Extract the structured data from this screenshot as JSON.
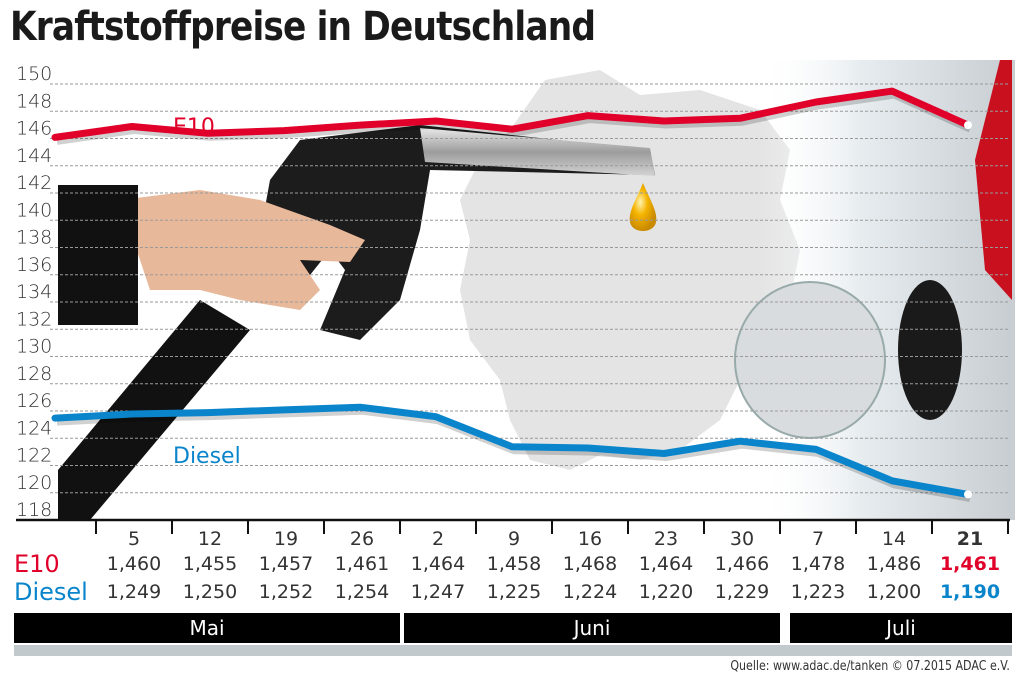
{
  "title": "Kraftstoffpreise in Deutschland",
  "chart_data": {
    "type": "line",
    "title": "Kraftstoffpreise in Deutschland",
    "xlabel": "",
    "ylabel": "",
    "ylim": [
      118,
      150
    ],
    "yticks": [
      150,
      148,
      146,
      144,
      142,
      140,
      138,
      136,
      134,
      132,
      130,
      128,
      126,
      124,
      122,
      120,
      118
    ],
    "grid": true,
    "categories": [
      "5",
      "12",
      "19",
      "26",
      "2",
      "9",
      "16",
      "23",
      "30",
      "7",
      "14",
      "21"
    ],
    "months": [
      {
        "label": "Mai",
        "span": 4
      },
      {
        "label": "Juni",
        "span": 5
      },
      {
        "label": "Juli",
        "span": 3
      }
    ],
    "series": [
      {
        "name": "E10",
        "color": "#e0002a",
        "start_value": 145.2,
        "values": [
          146.0,
          145.5,
          145.7,
          146.1,
          146.4,
          145.8,
          146.8,
          146.4,
          146.6,
          147.8,
          148.6,
          146.1
        ],
        "table_values": [
          "1,460",
          "1,455",
          "1,457",
          "1,461",
          "1,464",
          "1,458",
          "1,468",
          "1,464",
          "1,466",
          "1,478",
          "1,486",
          "1,461"
        ]
      },
      {
        "name": "Diesel",
        "color": "#0a85cc",
        "start_value": 124.6,
        "values": [
          124.9,
          125.0,
          125.2,
          125.4,
          124.7,
          122.5,
          122.4,
          122.0,
          122.9,
          122.3,
          120.0,
          119.0
        ],
        "table_values": [
          "1,249",
          "1,250",
          "1,252",
          "1,254",
          "1,247",
          "1,225",
          "1,224",
          "1,220",
          "1,229",
          "1,223",
          "1,200",
          "1,190"
        ]
      }
    ],
    "annotations": [
      "E10",
      "Diesel"
    ]
  },
  "labels": {
    "e10": "E10",
    "diesel": "Diesel"
  },
  "source": "Quelle: www.adac.de/tanken   © 07.2015  ADAC e.V."
}
